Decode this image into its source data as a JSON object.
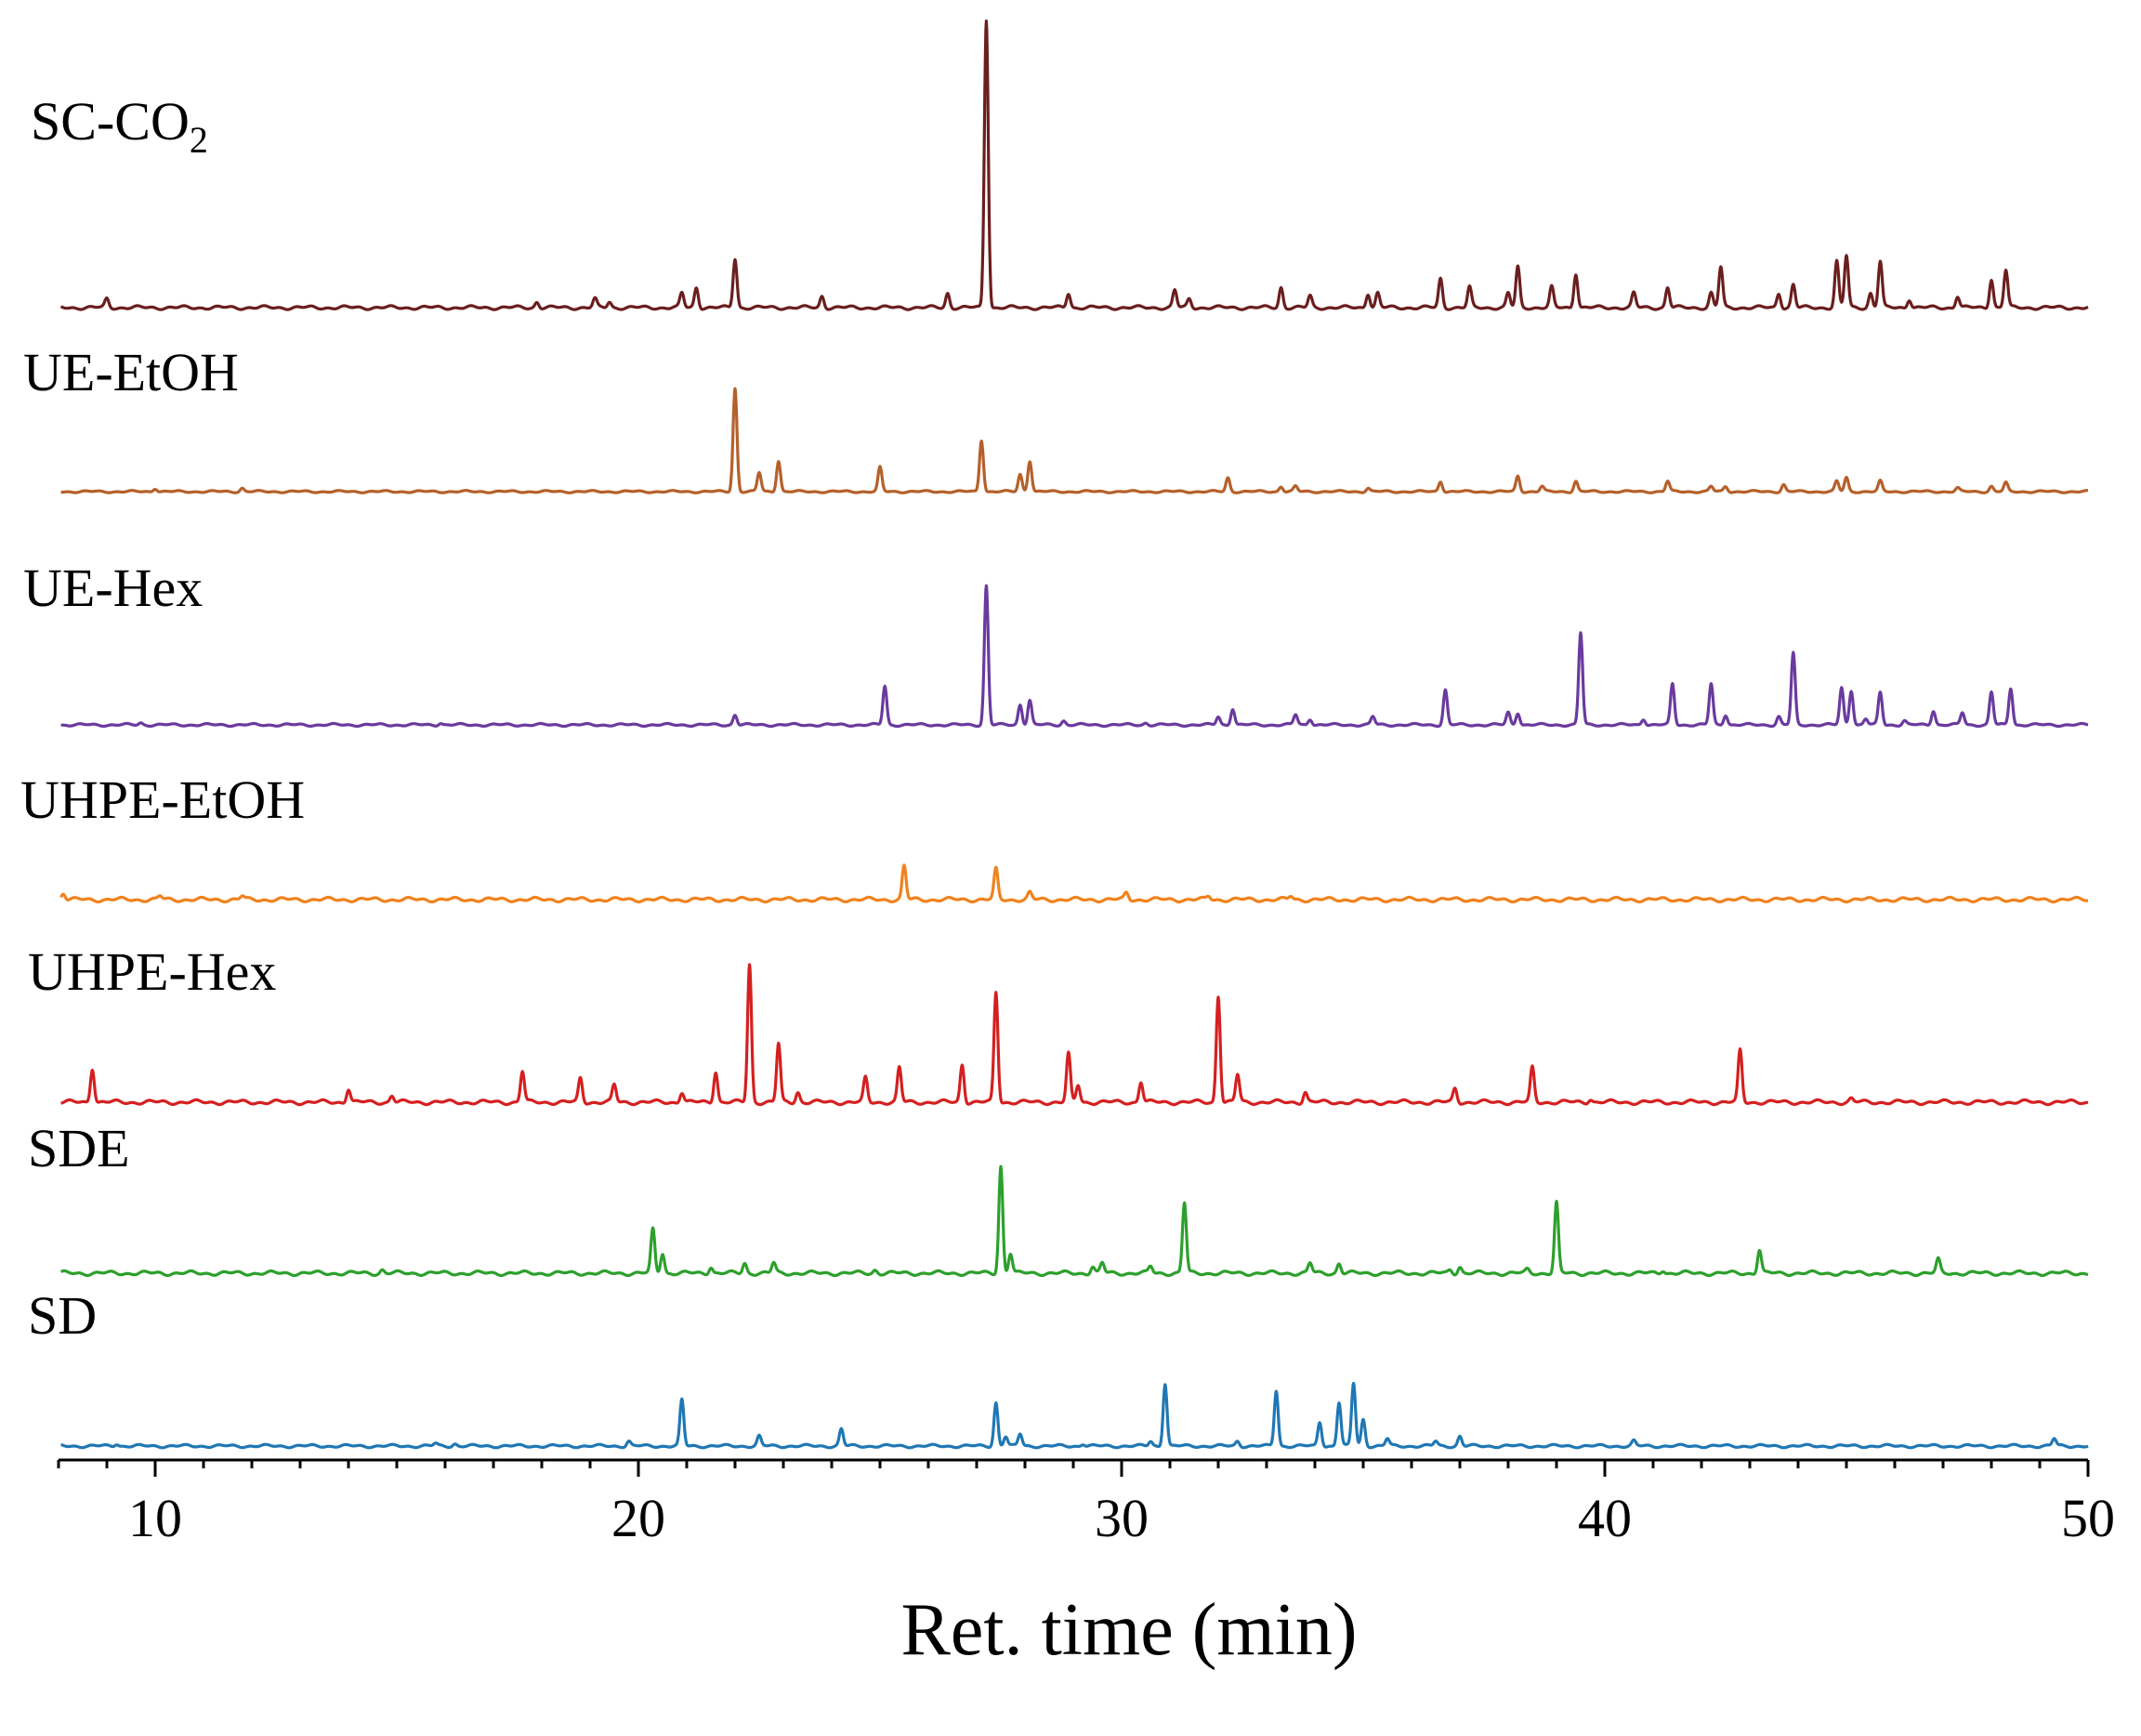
{
  "chart_data": {
    "type": "line",
    "title": "",
    "xlabel": "Ret. time (min)",
    "ylabel": "",
    "xlim": [
      8,
      50
    ],
    "xticks": [
      10,
      20,
      30,
      40,
      50
    ],
    "grid": false,
    "legend": "none (series labelled at left of each stacked trace)",
    "series": [
      {
        "name": "SC-CO",
        "name_subscript": "2",
        "color": "#6b1e1e",
        "peaks": [
          [
            9.0,
            0.03
          ],
          [
            17.9,
            0.02
          ],
          [
            19.1,
            0.03
          ],
          [
            19.4,
            0.02
          ],
          [
            20.9,
            0.05
          ],
          [
            21.2,
            0.07
          ],
          [
            22.0,
            0.17
          ],
          [
            23.8,
            0.04
          ],
          [
            26.4,
            0.05
          ],
          [
            27.2,
            1.0
          ],
          [
            28.9,
            0.05
          ],
          [
            31.1,
            0.06
          ],
          [
            31.4,
            0.03
          ],
          [
            33.3,
            0.07
          ],
          [
            33.9,
            0.04
          ],
          [
            35.1,
            0.05
          ],
          [
            35.3,
            0.05
          ],
          [
            36.6,
            0.1
          ],
          [
            37.2,
            0.07
          ],
          [
            38.0,
            0.05
          ],
          [
            38.2,
            0.14
          ],
          [
            38.9,
            0.07
          ],
          [
            39.4,
            0.12
          ],
          [
            40.6,
            0.05
          ],
          [
            41.3,
            0.07
          ],
          [
            42.2,
            0.05
          ],
          [
            42.4,
            0.14
          ],
          [
            43.6,
            0.05
          ],
          [
            43.9,
            0.08
          ],
          [
            44.8,
            0.16
          ],
          [
            45.0,
            0.18
          ],
          [
            45.5,
            0.05
          ],
          [
            45.7,
            0.16
          ],
          [
            46.3,
            0.03
          ],
          [
            47.3,
            0.04
          ],
          [
            48.0,
            0.1
          ],
          [
            48.3,
            0.13
          ]
        ]
      },
      {
        "name": "UE-EtOH",
        "color": "#b5602a",
        "peaks": [
          [
            10.0,
            0.02
          ],
          [
            11.8,
            0.02
          ],
          [
            22.0,
            0.6
          ],
          [
            22.5,
            0.11
          ],
          [
            22.9,
            0.18
          ],
          [
            25.0,
            0.14
          ],
          [
            27.1,
            0.3
          ],
          [
            27.9,
            0.1
          ],
          [
            28.1,
            0.18
          ],
          [
            32.2,
            0.08
          ],
          [
            33.3,
            0.03
          ],
          [
            33.6,
            0.03
          ],
          [
            35.1,
            0.02
          ],
          [
            36.6,
            0.06
          ],
          [
            38.2,
            0.09
          ],
          [
            38.7,
            0.03
          ],
          [
            39.4,
            0.06
          ],
          [
            41.3,
            0.06
          ],
          [
            42.2,
            0.03
          ],
          [
            42.5,
            0.03
          ],
          [
            43.7,
            0.04
          ],
          [
            44.8,
            0.06
          ],
          [
            45.0,
            0.08
          ],
          [
            45.7,
            0.06
          ],
          [
            47.3,
            0.02
          ],
          [
            48.0,
            0.03
          ],
          [
            48.3,
            0.05
          ]
        ]
      },
      {
        "name": "UE-Hex",
        "color": "#6a3a9e",
        "peaks": [
          [
            9.7,
            0.01
          ],
          [
            15.9,
            0.01
          ],
          [
            22.0,
            0.05
          ],
          [
            25.1,
            0.19
          ],
          [
            27.2,
            0.68
          ],
          [
            27.9,
            0.1
          ],
          [
            28.1,
            0.12
          ],
          [
            28.8,
            0.02
          ],
          [
            30.5,
            0.01
          ],
          [
            32.0,
            0.04
          ],
          [
            32.3,
            0.08
          ],
          [
            33.6,
            0.05
          ],
          [
            33.9,
            0.03
          ],
          [
            35.2,
            0.04
          ],
          [
            36.7,
            0.17
          ],
          [
            38.0,
            0.06
          ],
          [
            38.2,
            0.06
          ],
          [
            39.5,
            0.45
          ],
          [
            40.8,
            0.03
          ],
          [
            41.4,
            0.2
          ],
          [
            42.2,
            0.2
          ],
          [
            42.5,
            0.05
          ],
          [
            43.6,
            0.04
          ],
          [
            43.9,
            0.35
          ],
          [
            44.9,
            0.18
          ],
          [
            45.1,
            0.17
          ],
          [
            45.4,
            0.03
          ],
          [
            45.7,
            0.16
          ],
          [
            46.2,
            0.02
          ],
          [
            46.8,
            0.07
          ],
          [
            47.4,
            0.06
          ],
          [
            48.0,
            0.16
          ],
          [
            48.4,
            0.18
          ]
        ]
      },
      {
        "name": "UHPE-EtOH",
        "color": "#f0821e",
        "peaks": [
          [
            8.1,
            0.02
          ],
          [
            10.1,
            0.01
          ],
          [
            11.8,
            0.01
          ],
          [
            25.5,
            0.1
          ],
          [
            27.4,
            0.09
          ],
          [
            28.1,
            0.02
          ],
          [
            30.1,
            0.02
          ],
          [
            31.8,
            0.01
          ],
          [
            33.5,
            0.01
          ]
        ]
      },
      {
        "name": "UHPE-Hex",
        "color": "#d42020",
        "peaks": [
          [
            8.7,
            0.1
          ],
          [
            14.0,
            0.04
          ],
          [
            14.9,
            0.02
          ],
          [
            17.6,
            0.09
          ],
          [
            18.8,
            0.07
          ],
          [
            19.5,
            0.05
          ],
          [
            20.9,
            0.03
          ],
          [
            21.6,
            0.09
          ],
          [
            22.3,
            0.4
          ],
          [
            22.9,
            0.17
          ],
          [
            23.3,
            0.03
          ],
          [
            24.7,
            0.07
          ],
          [
            25.4,
            0.1
          ],
          [
            26.7,
            0.11
          ],
          [
            27.4,
            0.32
          ],
          [
            28.9,
            0.14
          ],
          [
            29.1,
            0.05
          ],
          [
            30.4,
            0.06
          ],
          [
            32.0,
            0.31
          ],
          [
            32.4,
            0.08
          ],
          [
            33.8,
            0.03
          ],
          [
            36.9,
            0.04
          ],
          [
            38.5,
            0.1
          ],
          [
            39.7,
            0.01
          ],
          [
            42.8,
            0.15
          ],
          [
            45.1,
            0.01
          ]
        ]
      },
      {
        "name": "SDE",
        "color": "#2ca02c",
        "peaks": [
          [
            14.7,
            0.01
          ],
          [
            20.3,
            0.13
          ],
          [
            20.5,
            0.06
          ],
          [
            21.5,
            0.02
          ],
          [
            22.2,
            0.03
          ],
          [
            22.8,
            0.03
          ],
          [
            24.9,
            0.01
          ],
          [
            27.5,
            0.32
          ],
          [
            27.7,
            0.06
          ],
          [
            29.4,
            0.02
          ],
          [
            29.6,
            0.03
          ],
          [
            30.6,
            0.02
          ],
          [
            31.3,
            0.21
          ],
          [
            33.9,
            0.03
          ],
          [
            34.5,
            0.03
          ],
          [
            36.8,
            0.01
          ],
          [
            37.0,
            0.02
          ],
          [
            38.4,
            0.01
          ],
          [
            39.0,
            0.21
          ],
          [
            41.2,
            0.01
          ],
          [
            43.2,
            0.07
          ],
          [
            46.9,
            0.04
          ]
        ]
      },
      {
        "name": "SD",
        "color": "#1f77b4",
        "peaks": [
          [
            9.2,
            0.01
          ],
          [
            15.8,
            0.01
          ],
          [
            16.2,
            0.01
          ],
          [
            19.8,
            0.02
          ],
          [
            20.9,
            0.19
          ],
          [
            22.5,
            0.04
          ],
          [
            24.2,
            0.07
          ],
          [
            27.4,
            0.18
          ],
          [
            27.6,
            0.04
          ],
          [
            27.9,
            0.05
          ],
          [
            29.2,
            0.01
          ],
          [
            30.6,
            0.02
          ],
          [
            30.9,
            0.26
          ],
          [
            32.4,
            0.02
          ],
          [
            33.2,
            0.23
          ],
          [
            34.1,
            0.1
          ],
          [
            34.5,
            0.18
          ],
          [
            34.8,
            0.26
          ],
          [
            35.0,
            0.11
          ],
          [
            35.5,
            0.03
          ],
          [
            36.5,
            0.02
          ],
          [
            37.0,
            0.04
          ],
          [
            40.6,
            0.02
          ],
          [
            49.3,
            0.03
          ]
        ]
      }
    ]
  }
}
